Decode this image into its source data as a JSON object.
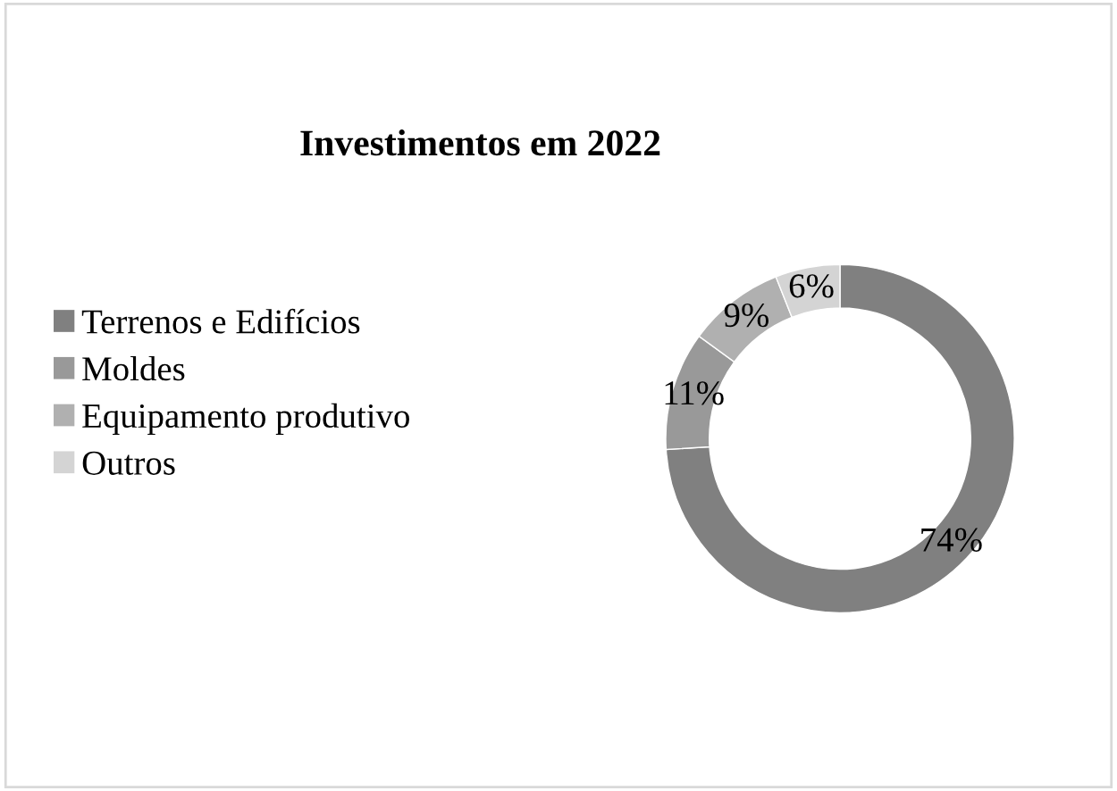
{
  "chart_data": {
    "type": "donut",
    "title": "Investimentos em 2022",
    "categories": [
      "Terrenos e Edifícios",
      "Moldes",
      "Equipamento produtivo",
      "Outros"
    ],
    "values": [
      74,
      11,
      9,
      6
    ],
    "colors": [
      "#808080",
      "#999999",
      "#b0b0b0",
      "#d4d4d4"
    ],
    "value_labels": [
      "74%",
      "11%",
      "9%",
      "6%"
    ],
    "legend": "left"
  }
}
